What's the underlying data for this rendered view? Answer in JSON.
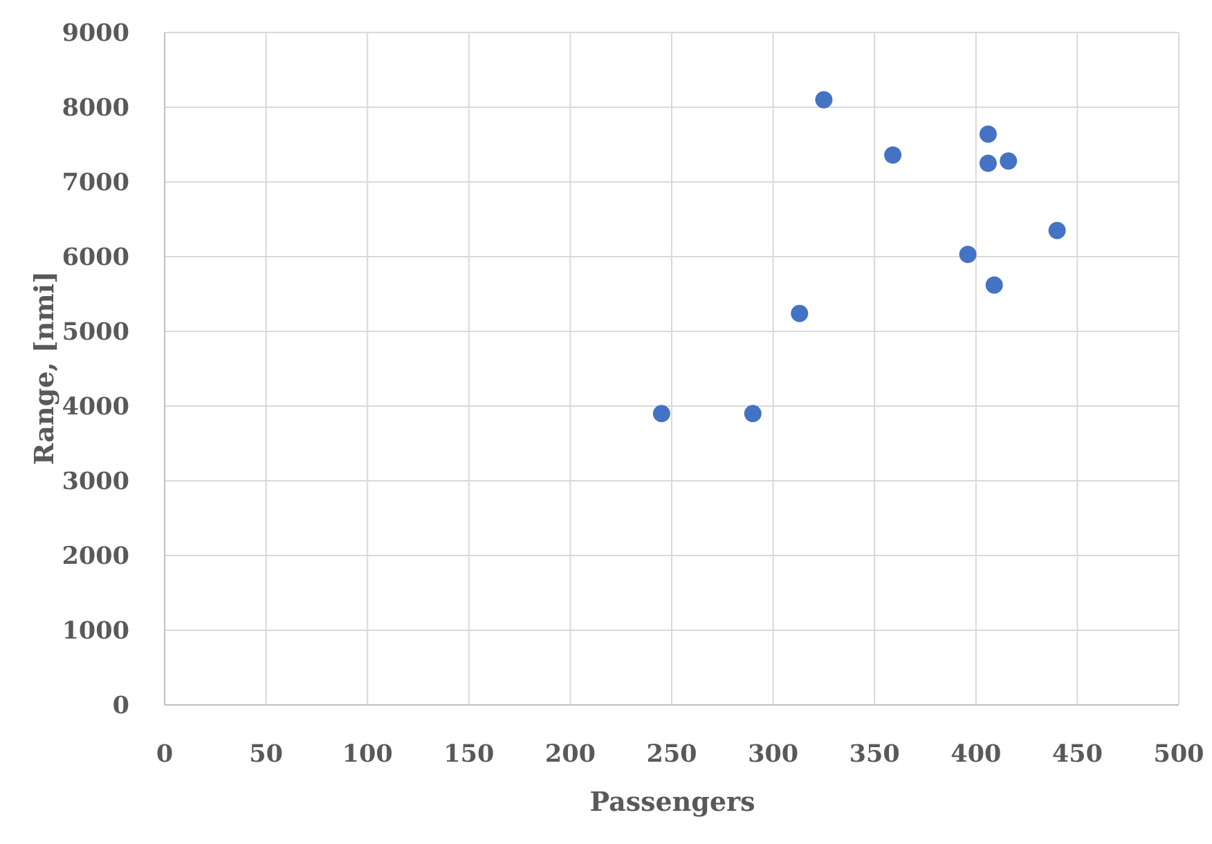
{
  "chart_data": {
    "type": "scatter",
    "title": "",
    "xlabel": "Passengers",
    "ylabel": "Range, [nmi]",
    "xlim": [
      0,
      500
    ],
    "ylim": [
      0,
      9000
    ],
    "x_ticks": [
      "0",
      "50",
      "100",
      "150",
      "200",
      "250",
      "300",
      "350",
      "400",
      "450",
      "500"
    ],
    "y_ticks": [
      "0",
      "1000",
      "2000",
      "3000",
      "4000",
      "5000",
      "6000",
      "7000",
      "8000",
      "9000"
    ],
    "grid": true,
    "legend": "none",
    "marker_color": "#4472c4",
    "series": [
      {
        "points": [
          {
            "x": 245,
            "y": 3900
          },
          {
            "x": 290,
            "y": 3900
          },
          {
            "x": 313,
            "y": 5240
          },
          {
            "x": 325,
            "y": 8100
          },
          {
            "x": 359,
            "y": 7360
          },
          {
            "x": 396,
            "y": 6030
          },
          {
            "x": 406,
            "y": 7640
          },
          {
            "x": 406,
            "y": 7250
          },
          {
            "x": 409,
            "y": 5620
          },
          {
            "x": 416,
            "y": 7280
          },
          {
            "x": 440,
            "y": 6350
          }
        ]
      }
    ]
  }
}
